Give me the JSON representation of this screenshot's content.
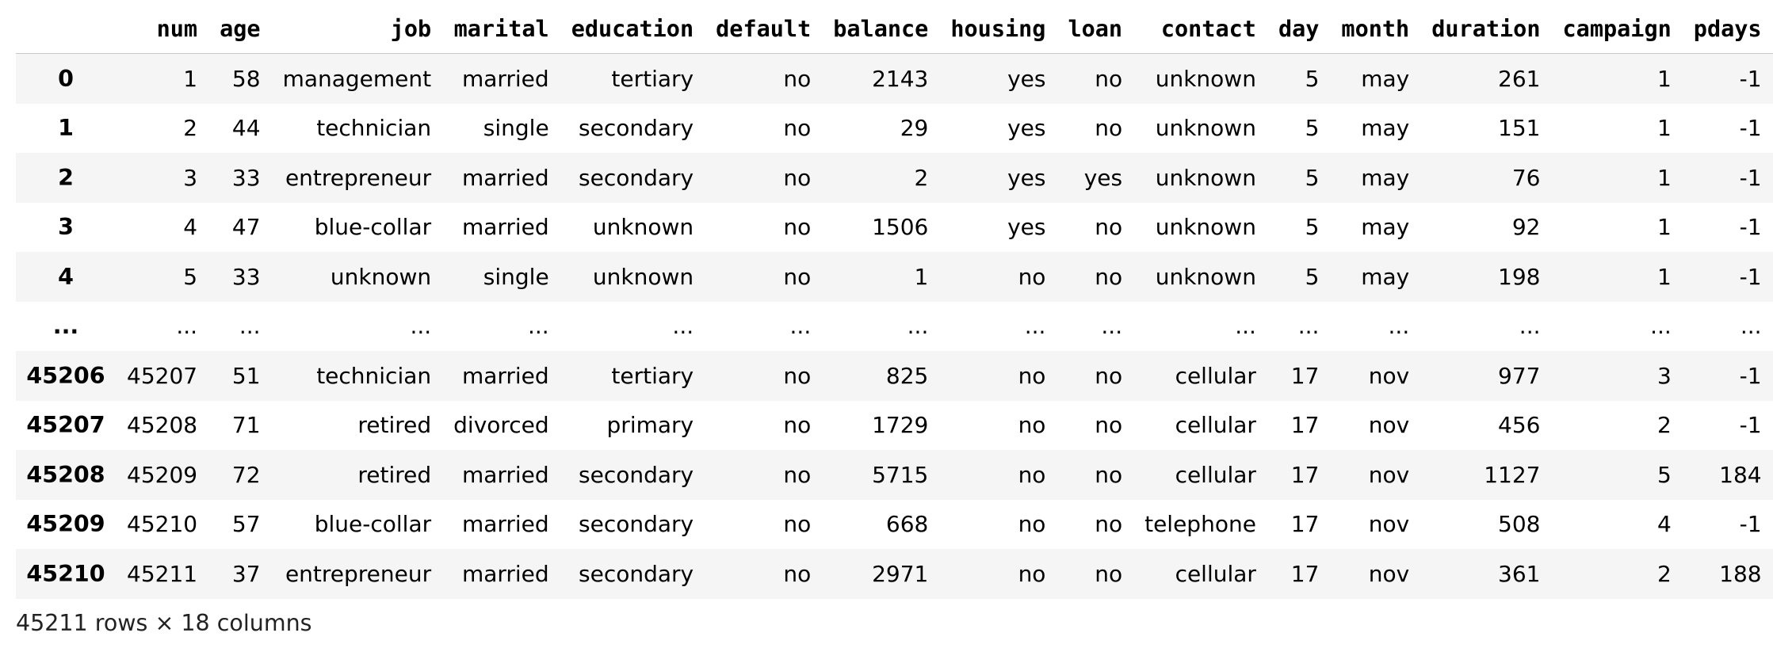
{
  "table": {
    "columns": [
      "",
      "num",
      "age",
      "job",
      "marital",
      "education",
      "default",
      "balance",
      "housing",
      "loan",
      "contact",
      "day",
      "month",
      "duration",
      "campaign",
      "pdays"
    ],
    "rows": [
      [
        "0",
        "1",
        "58",
        "management",
        "married",
        "tertiary",
        "no",
        "2143",
        "yes",
        "no",
        "unknown",
        "5",
        "may",
        "261",
        "1",
        "-1"
      ],
      [
        "1",
        "2",
        "44",
        "technician",
        "single",
        "secondary",
        "no",
        "29",
        "yes",
        "no",
        "unknown",
        "5",
        "may",
        "151",
        "1",
        "-1"
      ],
      [
        "2",
        "3",
        "33",
        "entrepreneur",
        "married",
        "secondary",
        "no",
        "2",
        "yes",
        "yes",
        "unknown",
        "5",
        "may",
        "76",
        "1",
        "-1"
      ],
      [
        "3",
        "4",
        "47",
        "blue-collar",
        "married",
        "unknown",
        "no",
        "1506",
        "yes",
        "no",
        "unknown",
        "5",
        "may",
        "92",
        "1",
        "-1"
      ],
      [
        "4",
        "5",
        "33",
        "unknown",
        "single",
        "unknown",
        "no",
        "1",
        "no",
        "no",
        "unknown",
        "5",
        "may",
        "198",
        "1",
        "-1"
      ],
      [
        "...",
        "...",
        "...",
        "...",
        "...",
        "...",
        "...",
        "...",
        "...",
        "...",
        "...",
        "...",
        "...",
        "...",
        "...",
        "..."
      ],
      [
        "45206",
        "45207",
        "51",
        "technician",
        "married",
        "tertiary",
        "no",
        "825",
        "no",
        "no",
        "cellular",
        "17",
        "nov",
        "977",
        "3",
        "-1"
      ],
      [
        "45207",
        "45208",
        "71",
        "retired",
        "divorced",
        "primary",
        "no",
        "1729",
        "no",
        "no",
        "cellular",
        "17",
        "nov",
        "456",
        "2",
        "-1"
      ],
      [
        "45208",
        "45209",
        "72",
        "retired",
        "married",
        "secondary",
        "no",
        "5715",
        "no",
        "no",
        "cellular",
        "17",
        "nov",
        "1127",
        "5",
        "184"
      ],
      [
        "45209",
        "45210",
        "57",
        "blue-collar",
        "married",
        "secondary",
        "no",
        "668",
        "no",
        "no",
        "telephone",
        "17",
        "nov",
        "508",
        "4",
        "-1"
      ],
      [
        "45210",
        "45211",
        "37",
        "entrepreneur",
        "married",
        "secondary",
        "no",
        "2971",
        "no",
        "no",
        "cellular",
        "17",
        "nov",
        "361",
        "2",
        "188"
      ]
    ]
  },
  "footer": {
    "shape_text": "45211 rows × 18 columns"
  },
  "colors": {
    "row_stripe": "#f5f5f5",
    "background": "#ffffff",
    "text": "#000000"
  }
}
